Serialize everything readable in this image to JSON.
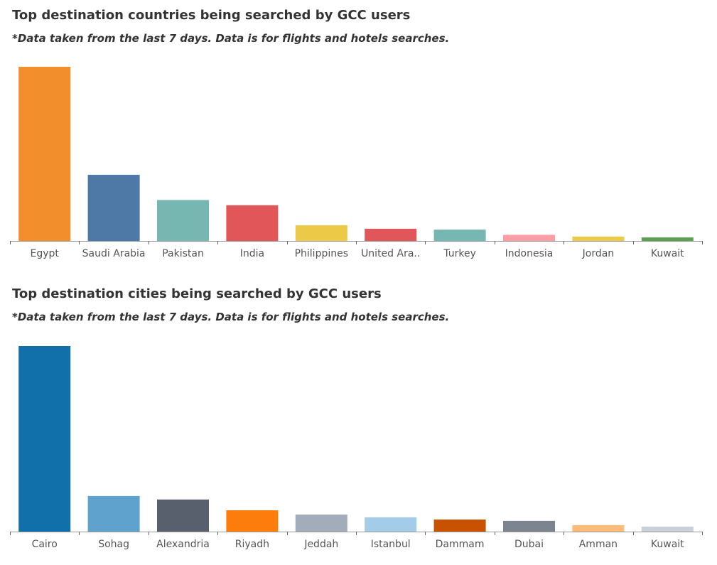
{
  "chart_data": [
    {
      "type": "bar",
      "title": "Top destination countries being searched by GCC users",
      "subtitle": "*Data taken from the last 7 days. Data is for flights and hotels searches.",
      "xlabel": "",
      "ylabel": "",
      "grid": false,
      "legend": "none",
      "ylim": [
        0,
        100
      ],
      "categories": [
        "Egypt",
        "Saudi Arabia",
        "Pakistan",
        "India",
        "Philippines",
        "United Ara..",
        "Turkey",
        "Indonesia",
        "Jordan",
        "Kuwait"
      ],
      "values": [
        100,
        38,
        23.5,
        20.5,
        9,
        7,
        6.5,
        3.5,
        2.5,
        2
      ],
      "colors": [
        "#F28E2B",
        "#4E79A7",
        "#76B7B2",
        "#E15759",
        "#EDC948",
        "#E15759",
        "#76B7B2",
        "#FF9DA7",
        "#EDC948",
        "#59A14F"
      ]
    },
    {
      "type": "bar",
      "title": "Top destination cities being searched by GCC users",
      "subtitle": "*Data taken from the last 7 days. Data is for flights and hotels searches.",
      "xlabel": "",
      "ylabel": "",
      "grid": false,
      "legend": "none",
      "ylim": [
        0,
        100
      ],
      "categories": [
        "Cairo",
        "Sohag",
        "Alexandria",
        "Riyadh",
        "Jeddah",
        "Istanbul",
        "Dammam",
        "Dubai",
        "Amman",
        "Kuwait"
      ],
      "values": [
        100,
        19.2,
        17.3,
        11.5,
        9.2,
        7.7,
        6.5,
        5.8,
        3.5,
        2.7
      ],
      "colors": [
        "#1170AA",
        "#5FA2CE",
        "#57606C",
        "#FC7D0B",
        "#A3ACB9",
        "#A3CCE9",
        "#C85200",
        "#7B848F",
        "#FFBC79",
        "#C8D0D9"
      ]
    }
  ]
}
